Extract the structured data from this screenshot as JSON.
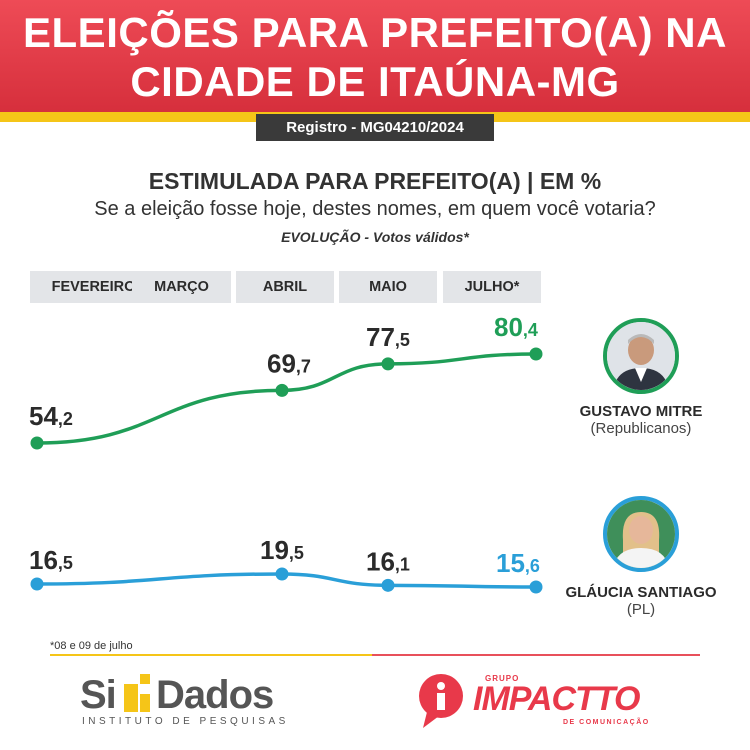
{
  "header": {
    "title": "ELEIÇÕES PARA PREFEITO(A) NA CIDADE DE ITAÚNA-MG",
    "registro": "Registro - MG04210/2024"
  },
  "subtitle": "ESTIMULADA PARA PREFEITO(A)  | EM %",
  "question": "Se a eleição fosse hoje, destes nomes, em quem você votaria?",
  "evolucao": "EVOLUÇÃO - Votos válidos*",
  "colors": {
    "header_red": "#d62f3c",
    "accent_yellow": "#f5c518",
    "mitre_green": "#1f9e57",
    "glaucia_blue": "#2a9fd8"
  },
  "chart_data": {
    "type": "line",
    "categories": [
      "FEVEREIRO",
      "MARÇO",
      "ABRIL",
      "MAIO",
      "JULHO*"
    ],
    "series": [
      {
        "name": "GUSTAVO MITRE",
        "party": "(Republicanos)",
        "color": "#1f9e57",
        "points": [
          {
            "category": "FEVEREIRO",
            "value": 54.2,
            "int": "54",
            "dec": ",2"
          },
          {
            "category": "ABRIL",
            "value": 69.7,
            "int": "69",
            "dec": ",7"
          },
          {
            "category": "MAIO",
            "value": 77.5,
            "int": "77",
            "dec": ",5"
          },
          {
            "category": "JULHO*",
            "value": 80.4,
            "int": "80",
            "dec": ",4"
          }
        ]
      },
      {
        "name": "GLÁUCIA SANTIAGO",
        "party": "(PL)",
        "color": "#2a9fd8",
        "points": [
          {
            "category": "FEVEREIRO",
            "value": 16.5,
            "int": "16",
            "dec": ",5"
          },
          {
            "category": "ABRIL",
            "value": 19.5,
            "int": "19",
            "dec": ",5"
          },
          {
            "category": "MAIO",
            "value": 16.1,
            "int": "16",
            "dec": ",1"
          },
          {
            "category": "JULHO*",
            "value": 15.6,
            "int": "15",
            "dec": ",6"
          }
        ]
      }
    ]
  },
  "footnote": "*08 e 09 de julho",
  "logos": {
    "sig_left": "Si",
    "sig_right": "Dados",
    "sig_sub": "INSTITUTO DE PESQUISAS",
    "imp_top": "GRUPO",
    "imp_main": "IMPACTTO",
    "imp_bottom": "DE COMUNICAÇÃO"
  }
}
